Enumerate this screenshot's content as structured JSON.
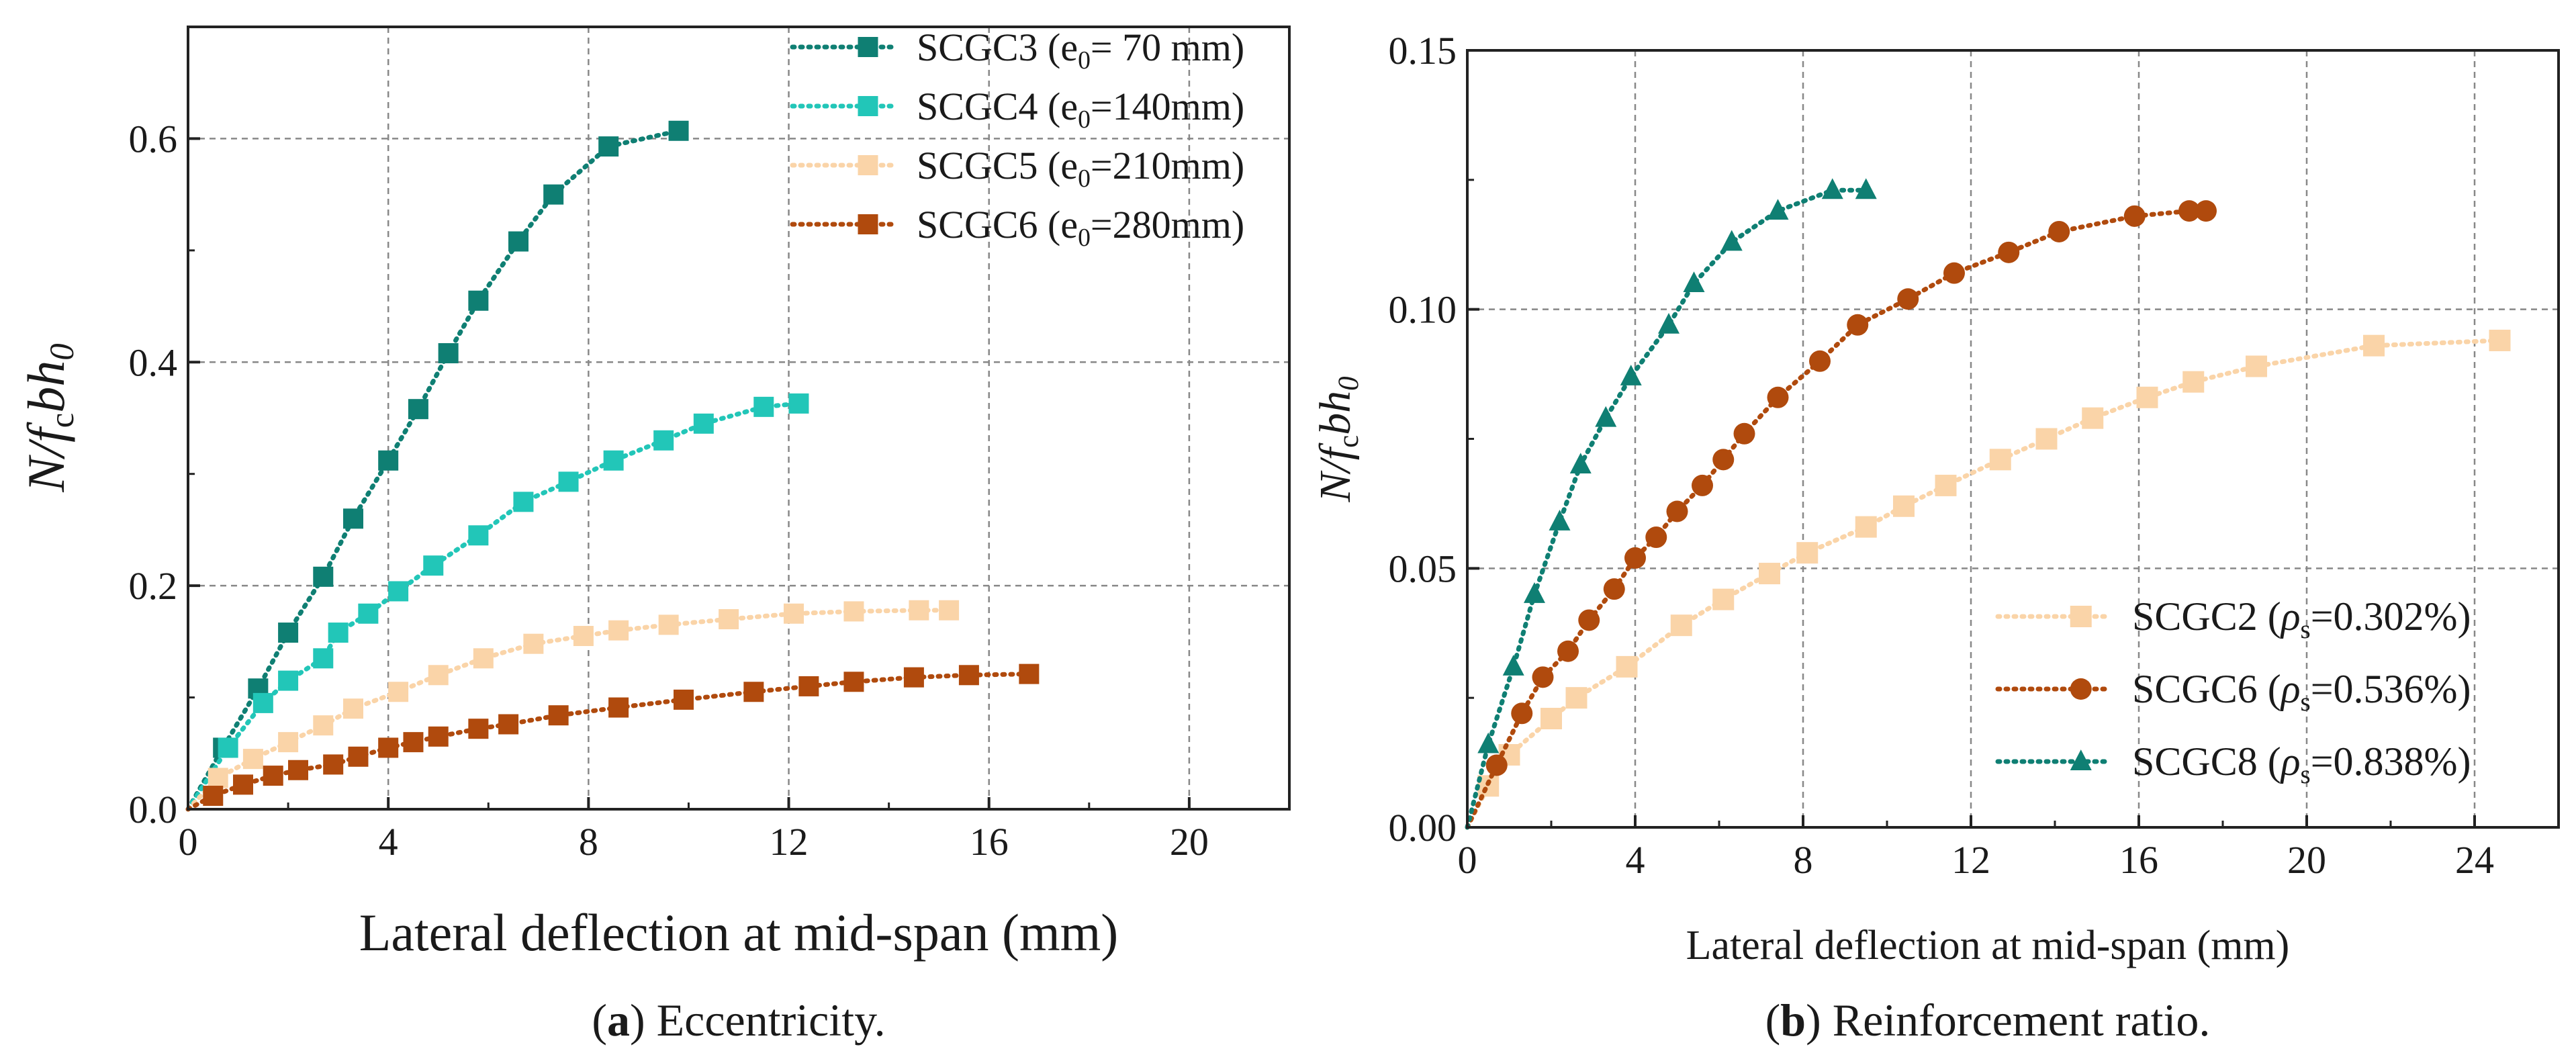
{
  "chart_data": [
    {
      "type": "line",
      "caption_letter": "a",
      "caption_text": ") Eccentricity.",
      "xlabel": "Lateral deflection at mid-span (mm)",
      "ylabel": {
        "N": "N/",
        "f": "f",
        "c": "c",
        "bh": "bh",
        "zero": "0"
      },
      "xlim": [
        0,
        22
      ],
      "ylim": [
        0,
        0.7
      ],
      "x_ticks": [
        "0",
        "4",
        "8",
        "12",
        "16",
        "20"
      ],
      "y_ticks": [
        "0.0",
        "0.2",
        "0.4",
        "0.6"
      ],
      "legend_position": "top-right",
      "series": [
        {
          "name": "SCGC3",
          "legend_pre": "SCGC3 (e",
          "legend_sub": "0",
          "legend_post": "= 70 mm)",
          "color": "#0f7f73",
          "marker": "square",
          "points": [
            [
              0,
              0
            ],
            [
              0.7,
              0.055
            ],
            [
              1.4,
              0.108
            ],
            [
              2.0,
              0.158
            ],
            [
              2.7,
              0.208
            ],
            [
              3.3,
              0.26
            ],
            [
              4.0,
              0.312
            ],
            [
              4.6,
              0.358
            ],
            [
              5.2,
              0.408
            ],
            [
              5.8,
              0.455
            ],
            [
              6.6,
              0.508
            ],
            [
              7.3,
              0.55
            ],
            [
              8.4,
              0.593
            ],
            [
              9.8,
              0.607
            ]
          ]
        },
        {
          "name": "SCGC4",
          "legend_pre": "SCGC4 (e",
          "legend_sub": "0",
          "legend_post": "=140mm)",
          "color": "#22c6b8",
          "marker": "square",
          "points": [
            [
              0,
              0
            ],
            [
              0.8,
              0.055
            ],
            [
              1.5,
              0.095
            ],
            [
              2.0,
              0.115
            ],
            [
              2.7,
              0.135
            ],
            [
              3.0,
              0.158
            ],
            [
              3.6,
              0.175
            ],
            [
              4.2,
              0.195
            ],
            [
              4.9,
              0.218
            ],
            [
              5.8,
              0.245
            ],
            [
              6.7,
              0.275
            ],
            [
              7.6,
              0.293
            ],
            [
              8.5,
              0.312
            ],
            [
              9.5,
              0.33
            ],
            [
              10.3,
              0.345
            ],
            [
              11.5,
              0.36
            ],
            [
              12.2,
              0.363
            ]
          ]
        },
        {
          "name": "SCGC5",
          "legend_pre": "SCGC5 (e",
          "legend_sub": "0",
          "legend_post": "=210mm)",
          "color": "#fad4a8",
          "marker": "square",
          "points": [
            [
              0,
              0
            ],
            [
              0.6,
              0.028
            ],
            [
              1.3,
              0.045
            ],
            [
              2.0,
              0.06
            ],
            [
              2.7,
              0.075
            ],
            [
              3.3,
              0.09
            ],
            [
              4.2,
              0.105
            ],
            [
              5.0,
              0.12
            ],
            [
              5.9,
              0.135
            ],
            [
              6.9,
              0.148
            ],
            [
              7.9,
              0.155
            ],
            [
              8.6,
              0.16
            ],
            [
              9.6,
              0.165
            ],
            [
              10.8,
              0.17
            ],
            [
              12.1,
              0.175
            ],
            [
              13.3,
              0.177
            ],
            [
              14.6,
              0.178
            ],
            [
              15.2,
              0.178
            ]
          ]
        },
        {
          "name": "SCGC6",
          "legend_pre": "SCGC6 (e",
          "legend_sub": "0",
          "legend_post": "=280mm)",
          "color": "#b04a0d",
          "marker": "square",
          "points": [
            [
              0,
              0
            ],
            [
              0.5,
              0.012
            ],
            [
              1.1,
              0.022
            ],
            [
              1.7,
              0.03
            ],
            [
              2.2,
              0.035
            ],
            [
              2.9,
              0.04
            ],
            [
              3.4,
              0.047
            ],
            [
              4.0,
              0.055
            ],
            [
              4.5,
              0.06
            ],
            [
              5.0,
              0.065
            ],
            [
              5.8,
              0.072
            ],
            [
              6.4,
              0.076
            ],
            [
              7.4,
              0.084
            ],
            [
              8.6,
              0.091
            ],
            [
              9.9,
              0.098
            ],
            [
              11.3,
              0.105
            ],
            [
              12.4,
              0.11
            ],
            [
              13.3,
              0.114
            ],
            [
              14.5,
              0.118
            ],
            [
              15.6,
              0.12
            ],
            [
              16.8,
              0.121
            ]
          ]
        }
      ]
    },
    {
      "type": "line",
      "caption_letter": "b",
      "caption_text": ") Reinforcement ratio.",
      "xlabel": "Lateral deflection at mid-span (mm)",
      "ylabel": {
        "N": "N/",
        "f": "f",
        "c": "c",
        "bh": "bh",
        "zero": "0"
      },
      "xlim": [
        0,
        26
      ],
      "ylim": [
        0,
        0.15
      ],
      "x_ticks": [
        "0",
        "4",
        "8",
        "12",
        "16",
        "20",
        "24"
      ],
      "y_ticks": [
        "0.00",
        "0.05",
        "0.10",
        "0.15"
      ],
      "legend_position": "bottom-right",
      "series": [
        {
          "name": "SCGC2",
          "legend_pre": "SCGC2 (",
          "legend_rho": "ρ",
          "legend_sub": "s",
          "legend_post": "=0.302%)",
          "color": "#fad4a8",
          "marker": "square",
          "points": [
            [
              0,
              0
            ],
            [
              0.5,
              0.008
            ],
            [
              1.0,
              0.014
            ],
            [
              2.0,
              0.021
            ],
            [
              2.6,
              0.025
            ],
            [
              3.8,
              0.031
            ],
            [
              5.1,
              0.039
            ],
            [
              6.1,
              0.044
            ],
            [
              7.2,
              0.049
            ],
            [
              8.1,
              0.053
            ],
            [
              9.5,
              0.058
            ],
            [
              10.4,
              0.062
            ],
            [
              11.4,
              0.066
            ],
            [
              12.7,
              0.071
            ],
            [
              13.8,
              0.075
            ],
            [
              14.9,
              0.079
            ],
            [
              16.2,
              0.083
            ],
            [
              17.3,
              0.086
            ],
            [
              18.8,
              0.089
            ],
            [
              21.6,
              0.093
            ],
            [
              24.6,
              0.094
            ]
          ]
        },
        {
          "name": "SCGC6",
          "legend_pre": "SCGC6 (",
          "legend_rho": "ρ",
          "legend_sub": "s",
          "legend_post": "=0.536%)",
          "color": "#b04a0d",
          "marker": "circle",
          "points": [
            [
              0,
              0
            ],
            [
              0.7,
              0.012
            ],
            [
              1.3,
              0.022
            ],
            [
              1.8,
              0.029
            ],
            [
              2.4,
              0.034
            ],
            [
              2.9,
              0.04
            ],
            [
              3.5,
              0.046
            ],
            [
              4.0,
              0.052
            ],
            [
              4.5,
              0.056
            ],
            [
              5.0,
              0.061
            ],
            [
              5.6,
              0.066
            ],
            [
              6.1,
              0.071
            ],
            [
              6.6,
              0.076
            ],
            [
              7.4,
              0.083
            ],
            [
              8.4,
              0.09
            ],
            [
              9.3,
              0.097
            ],
            [
              10.5,
              0.102
            ],
            [
              11.6,
              0.107
            ],
            [
              12.9,
              0.111
            ],
            [
              14.1,
              0.115
            ],
            [
              15.9,
              0.118
            ],
            [
              17.2,
              0.119
            ],
            [
              17.6,
              0.119
            ]
          ]
        },
        {
          "name": "SCGC8",
          "legend_pre": "SCGC8 (",
          "legend_rho": "ρ",
          "legend_sub": "s",
          "legend_post": "=0.838%)",
          "color": "#0f7f73",
          "marker": "triangle",
          "points": [
            [
              0,
              0
            ],
            [
              0.5,
              0.016
            ],
            [
              1.1,
              0.031
            ],
            [
              1.6,
              0.045
            ],
            [
              2.2,
              0.059
            ],
            [
              2.7,
              0.07
            ],
            [
              3.3,
              0.079
            ],
            [
              3.9,
              0.087
            ],
            [
              4.8,
              0.097
            ],
            [
              5.4,
              0.105
            ],
            [
              6.3,
              0.113
            ],
            [
              7.4,
              0.119
            ],
            [
              8.7,
              0.123
            ],
            [
              9.5,
              0.123
            ]
          ]
        }
      ]
    }
  ]
}
